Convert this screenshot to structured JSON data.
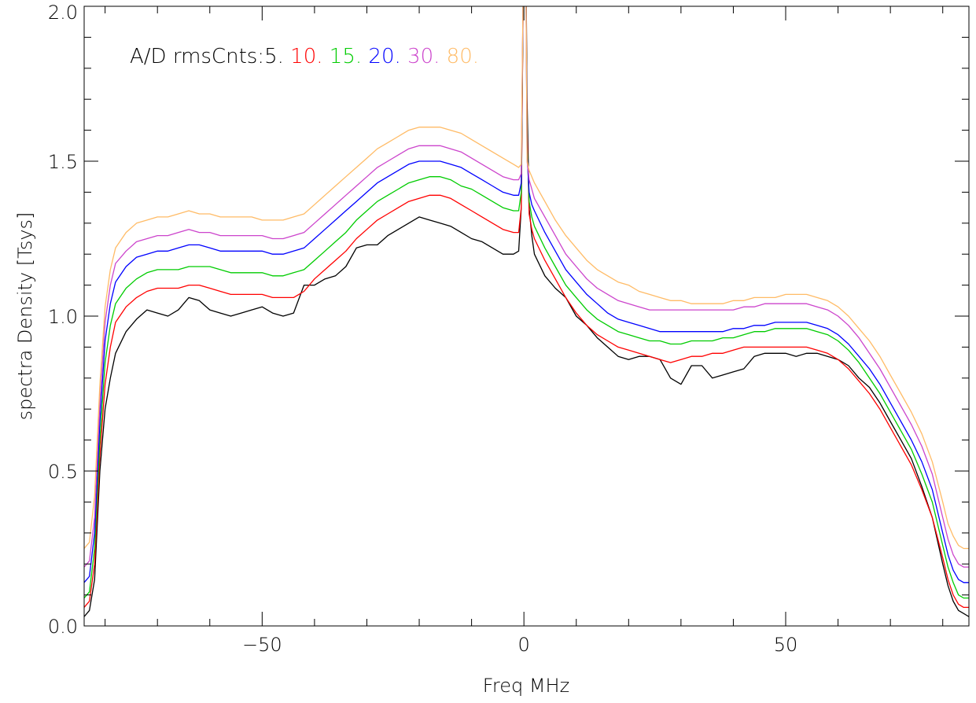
{
  "chart_data": {
    "type": "line",
    "xlabel": "Freq MHz",
    "ylabel": "spectra Density [Tsys]",
    "xlim": [
      -84,
      85
    ],
    "ylim": [
      0.0,
      2.0
    ],
    "x_ticks": [
      -50,
      0,
      50
    ],
    "x_tick_labels": [
      "−50",
      "0",
      "50"
    ],
    "y_ticks": [
      0.0,
      0.5,
      1.0,
      1.5,
      2.0
    ],
    "y_tick_labels": [
      "0.0",
      "0.5",
      "1.0",
      "1.5",
      "2.0"
    ],
    "legend": {
      "prefix": "A/D rmsCnts:",
      "placement": "top-left",
      "entries": [
        "5.",
        "10.",
        "15.",
        "20.",
        "30.",
        "80."
      ]
    },
    "grid": false,
    "series": [
      {
        "name": "5.",
        "color": "#000000",
        "x": [
          -84,
          -83,
          -82,
          -81,
          -80,
          -79,
          -78,
          -76,
          -74,
          -72,
          -70,
          -68,
          -66,
          -64,
          -62,
          -60,
          -58,
          -56,
          -54,
          -52,
          -50,
          -48,
          -46,
          -44,
          -42,
          -40,
          -38,
          -36,
          -34,
          -32,
          -30,
          -28,
          -26,
          -24,
          -22,
          -20,
          -18,
          -16,
          -14,
          -12,
          -10,
          -8,
          -6,
          -4,
          -2,
          -1,
          -0.5,
          0,
          0.3,
          0.6,
          1,
          1.5,
          2,
          4,
          6,
          8,
          10,
          12,
          14,
          16,
          18,
          20,
          22,
          24,
          26,
          28,
          30,
          32,
          34,
          36,
          38,
          40,
          42,
          44,
          46,
          48,
          50,
          52,
          54,
          56,
          58,
          60,
          62,
          64,
          66,
          68,
          70,
          72,
          74,
          76,
          78,
          80,
          81,
          82,
          83,
          84,
          85
        ],
        "y": [
          0.03,
          0.05,
          0.15,
          0.5,
          0.7,
          0.8,
          0.88,
          0.95,
          0.99,
          1.02,
          1.01,
          1.0,
          1.02,
          1.06,
          1.05,
          1.02,
          1.01,
          1.0,
          1.01,
          1.02,
          1.03,
          1.01,
          1.0,
          1.01,
          1.1,
          1.1,
          1.12,
          1.13,
          1.16,
          1.22,
          1.23,
          1.23,
          1.26,
          1.28,
          1.3,
          1.32,
          1.31,
          1.3,
          1.29,
          1.27,
          1.25,
          1.24,
          1.22,
          1.2,
          1.2,
          1.21,
          1.35,
          2.3,
          2.3,
          1.7,
          1.35,
          1.26,
          1.2,
          1.13,
          1.09,
          1.06,
          1.0,
          0.97,
          0.93,
          0.9,
          0.87,
          0.86,
          0.87,
          0.87,
          0.86,
          0.8,
          0.78,
          0.84,
          0.84,
          0.8,
          0.81,
          0.82,
          0.83,
          0.87,
          0.88,
          0.88,
          0.88,
          0.87,
          0.88,
          0.88,
          0.87,
          0.86,
          0.84,
          0.8,
          0.77,
          0.72,
          0.66,
          0.6,
          0.54,
          0.45,
          0.35,
          0.2,
          0.13,
          0.08,
          0.05,
          0.04,
          0.03
        ]
      },
      {
        "name": "10.",
        "color": "#ff0000",
        "x": [
          -84,
          -83,
          -82,
          -81,
          -80,
          -79,
          -78,
          -76,
          -74,
          -72,
          -70,
          -68,
          -66,
          -64,
          -62,
          -60,
          -58,
          -56,
          -54,
          -52,
          -50,
          -48,
          -46,
          -44,
          -42,
          -40,
          -38,
          -36,
          -34,
          -32,
          -30,
          -28,
          -26,
          -24,
          -22,
          -20,
          -18,
          -16,
          -14,
          -12,
          -10,
          -8,
          -6,
          -4,
          -2,
          -1,
          -0.5,
          0,
          0.3,
          0.6,
          1,
          1.5,
          2,
          4,
          6,
          8,
          10,
          12,
          14,
          16,
          18,
          20,
          22,
          24,
          26,
          28,
          30,
          32,
          34,
          36,
          38,
          40,
          42,
          44,
          46,
          48,
          50,
          52,
          54,
          56,
          58,
          60,
          62,
          64,
          66,
          68,
          70,
          72,
          74,
          76,
          78,
          80,
          81,
          82,
          83,
          84,
          85
        ],
        "y": [
          0.06,
          0.08,
          0.2,
          0.55,
          0.78,
          0.9,
          0.98,
          1.03,
          1.06,
          1.08,
          1.09,
          1.09,
          1.09,
          1.1,
          1.1,
          1.09,
          1.08,
          1.07,
          1.07,
          1.07,
          1.07,
          1.06,
          1.06,
          1.06,
          1.08,
          1.12,
          1.15,
          1.18,
          1.21,
          1.25,
          1.28,
          1.31,
          1.33,
          1.35,
          1.37,
          1.38,
          1.39,
          1.39,
          1.38,
          1.36,
          1.34,
          1.32,
          1.3,
          1.28,
          1.27,
          1.27,
          1.35,
          2.3,
          2.3,
          1.6,
          1.33,
          1.28,
          1.25,
          1.18,
          1.12,
          1.06,
          1.01,
          0.97,
          0.94,
          0.92,
          0.9,
          0.89,
          0.88,
          0.87,
          0.86,
          0.85,
          0.86,
          0.87,
          0.87,
          0.88,
          0.88,
          0.89,
          0.9,
          0.9,
          0.9,
          0.9,
          0.9,
          0.9,
          0.9,
          0.89,
          0.88,
          0.86,
          0.83,
          0.79,
          0.75,
          0.7,
          0.64,
          0.58,
          0.52,
          0.44,
          0.35,
          0.22,
          0.15,
          0.1,
          0.07,
          0.06,
          0.06
        ]
      },
      {
        "name": "15.",
        "color": "#00cc00",
        "x": [
          -84,
          -83,
          -82,
          -81,
          -80,
          -79,
          -78,
          -76,
          -74,
          -72,
          -70,
          -68,
          -66,
          -64,
          -62,
          -60,
          -58,
          -56,
          -54,
          -52,
          -50,
          -48,
          -46,
          -44,
          -42,
          -40,
          -38,
          -36,
          -34,
          -32,
          -30,
          -28,
          -26,
          -24,
          -22,
          -20,
          -18,
          -16,
          -14,
          -12,
          -10,
          -8,
          -6,
          -4,
          -2,
          -1,
          -0.5,
          0,
          0.3,
          0.6,
          1,
          1.5,
          2,
          4,
          6,
          8,
          10,
          12,
          14,
          16,
          18,
          20,
          22,
          24,
          26,
          28,
          30,
          32,
          34,
          36,
          38,
          40,
          42,
          44,
          46,
          48,
          50,
          52,
          54,
          56,
          58,
          60,
          62,
          64,
          66,
          68,
          70,
          72,
          74,
          76,
          78,
          80,
          81,
          82,
          83,
          84,
          85
        ],
        "y": [
          0.09,
          0.11,
          0.25,
          0.6,
          0.85,
          0.97,
          1.04,
          1.09,
          1.12,
          1.14,
          1.15,
          1.15,
          1.15,
          1.16,
          1.16,
          1.16,
          1.15,
          1.14,
          1.14,
          1.14,
          1.14,
          1.13,
          1.13,
          1.14,
          1.15,
          1.18,
          1.21,
          1.24,
          1.27,
          1.31,
          1.34,
          1.37,
          1.39,
          1.41,
          1.43,
          1.44,
          1.45,
          1.45,
          1.44,
          1.42,
          1.41,
          1.39,
          1.37,
          1.35,
          1.34,
          1.34,
          1.4,
          2.3,
          2.3,
          1.55,
          1.37,
          1.32,
          1.29,
          1.22,
          1.16,
          1.1,
          1.06,
          1.02,
          0.99,
          0.97,
          0.95,
          0.94,
          0.93,
          0.92,
          0.92,
          0.91,
          0.91,
          0.92,
          0.92,
          0.92,
          0.93,
          0.93,
          0.94,
          0.95,
          0.95,
          0.96,
          0.96,
          0.96,
          0.96,
          0.95,
          0.94,
          0.92,
          0.89,
          0.85,
          0.8,
          0.75,
          0.69,
          0.63,
          0.57,
          0.49,
          0.4,
          0.26,
          0.19,
          0.14,
          0.1,
          0.09,
          0.09
        ]
      },
      {
        "name": "20.",
        "color": "#0000ff",
        "x": [
          -84,
          -83,
          -82,
          -81,
          -80,
          -79,
          -78,
          -76,
          -74,
          -72,
          -70,
          -68,
          -66,
          -64,
          -62,
          -60,
          -58,
          -56,
          -54,
          -52,
          -50,
          -48,
          -46,
          -44,
          -42,
          -40,
          -38,
          -36,
          -34,
          -32,
          -30,
          -28,
          -26,
          -24,
          -22,
          -20,
          -18,
          -16,
          -14,
          -12,
          -10,
          -8,
          -6,
          -4,
          -2,
          -1,
          -0.5,
          0,
          0.3,
          0.6,
          1,
          1.5,
          2,
          4,
          6,
          8,
          10,
          12,
          14,
          16,
          18,
          20,
          22,
          24,
          26,
          28,
          30,
          32,
          34,
          36,
          38,
          40,
          42,
          44,
          46,
          48,
          50,
          52,
          54,
          56,
          58,
          60,
          62,
          64,
          66,
          68,
          70,
          72,
          74,
          76,
          78,
          80,
          81,
          82,
          83,
          84,
          85
        ],
        "y": [
          0.14,
          0.16,
          0.3,
          0.66,
          0.92,
          1.04,
          1.11,
          1.16,
          1.19,
          1.2,
          1.21,
          1.21,
          1.22,
          1.23,
          1.23,
          1.22,
          1.21,
          1.21,
          1.21,
          1.21,
          1.21,
          1.2,
          1.2,
          1.21,
          1.22,
          1.25,
          1.28,
          1.31,
          1.34,
          1.37,
          1.4,
          1.43,
          1.45,
          1.47,
          1.49,
          1.5,
          1.5,
          1.5,
          1.49,
          1.48,
          1.46,
          1.44,
          1.42,
          1.4,
          1.39,
          1.39,
          1.43,
          2.3,
          2.3,
          1.52,
          1.4,
          1.36,
          1.34,
          1.27,
          1.21,
          1.15,
          1.11,
          1.07,
          1.04,
          1.01,
          0.99,
          0.98,
          0.97,
          0.96,
          0.95,
          0.95,
          0.95,
          0.95,
          0.95,
          0.95,
          0.95,
          0.96,
          0.96,
          0.97,
          0.97,
          0.98,
          0.98,
          0.98,
          0.98,
          0.97,
          0.96,
          0.94,
          0.91,
          0.87,
          0.83,
          0.78,
          0.72,
          0.66,
          0.6,
          0.53,
          0.44,
          0.3,
          0.23,
          0.18,
          0.15,
          0.14,
          0.14
        ]
      },
      {
        "name": "30.",
        "color": "#cc44cc",
        "x": [
          -84,
          -83,
          -82,
          -81,
          -80,
          -79,
          -78,
          -76,
          -74,
          -72,
          -70,
          -68,
          -66,
          -64,
          -62,
          -60,
          -58,
          -56,
          -54,
          -52,
          -50,
          -48,
          -46,
          -44,
          -42,
          -40,
          -38,
          -36,
          -34,
          -32,
          -30,
          -28,
          -26,
          -24,
          -22,
          -20,
          -18,
          -16,
          -14,
          -12,
          -10,
          -8,
          -6,
          -4,
          -2,
          -1,
          -0.5,
          0,
          0.3,
          0.6,
          1,
          1.5,
          2,
          4,
          6,
          8,
          10,
          12,
          14,
          16,
          18,
          20,
          22,
          24,
          26,
          28,
          30,
          32,
          34,
          36,
          38,
          40,
          42,
          44,
          46,
          48,
          50,
          52,
          54,
          56,
          58,
          60,
          62,
          64,
          66,
          68,
          70,
          72,
          74,
          76,
          78,
          80,
          81,
          82,
          83,
          84,
          85
        ],
        "y": [
          0.19,
          0.21,
          0.35,
          0.72,
          0.98,
          1.1,
          1.17,
          1.21,
          1.24,
          1.25,
          1.26,
          1.26,
          1.27,
          1.28,
          1.27,
          1.27,
          1.26,
          1.26,
          1.26,
          1.26,
          1.26,
          1.25,
          1.25,
          1.26,
          1.27,
          1.3,
          1.33,
          1.36,
          1.39,
          1.42,
          1.45,
          1.48,
          1.5,
          1.52,
          1.54,
          1.55,
          1.55,
          1.55,
          1.54,
          1.53,
          1.51,
          1.49,
          1.47,
          1.45,
          1.44,
          1.44,
          1.46,
          2.3,
          2.3,
          1.5,
          1.44,
          1.41,
          1.38,
          1.32,
          1.26,
          1.2,
          1.16,
          1.12,
          1.09,
          1.07,
          1.05,
          1.04,
          1.03,
          1.02,
          1.02,
          1.02,
          1.02,
          1.02,
          1.02,
          1.02,
          1.02,
          1.02,
          1.03,
          1.03,
          1.04,
          1.04,
          1.04,
          1.04,
          1.04,
          1.03,
          1.02,
          1.0,
          0.97,
          0.93,
          0.88,
          0.83,
          0.77,
          0.71,
          0.65,
          0.58,
          0.49,
          0.35,
          0.28,
          0.23,
          0.2,
          0.19,
          0.19
        ]
      },
      {
        "name": "80.",
        "color": "#ffbb66",
        "x": [
          -84,
          -83,
          -82,
          -81,
          -80,
          -79,
          -78,
          -76,
          -74,
          -72,
          -70,
          -68,
          -66,
          -64,
          -62,
          -60,
          -58,
          -56,
          -54,
          -52,
          -50,
          -48,
          -46,
          -44,
          -42,
          -40,
          -38,
          -36,
          -34,
          -32,
          -30,
          -28,
          -26,
          -24,
          -22,
          -20,
          -18,
          -16,
          -14,
          -12,
          -10,
          -8,
          -6,
          -4,
          -2,
          -1,
          -0.5,
          0,
          0.3,
          0.6,
          1,
          1.5,
          2,
          4,
          6,
          8,
          10,
          12,
          14,
          16,
          18,
          20,
          22,
          24,
          26,
          28,
          30,
          32,
          34,
          36,
          38,
          40,
          42,
          44,
          46,
          48,
          50,
          52,
          54,
          56,
          58,
          60,
          62,
          64,
          66,
          68,
          70,
          72,
          74,
          76,
          78,
          80,
          81,
          82,
          83,
          84,
          85
        ],
        "y": [
          0.25,
          0.27,
          0.42,
          0.78,
          1.03,
          1.15,
          1.22,
          1.27,
          1.3,
          1.31,
          1.32,
          1.32,
          1.33,
          1.34,
          1.33,
          1.33,
          1.32,
          1.32,
          1.32,
          1.32,
          1.31,
          1.31,
          1.31,
          1.32,
          1.33,
          1.36,
          1.39,
          1.42,
          1.45,
          1.48,
          1.51,
          1.54,
          1.56,
          1.58,
          1.6,
          1.61,
          1.61,
          1.61,
          1.6,
          1.59,
          1.57,
          1.55,
          1.53,
          1.51,
          1.49,
          1.48,
          1.49,
          2.3,
          2.3,
          1.5,
          1.47,
          1.45,
          1.43,
          1.37,
          1.31,
          1.26,
          1.22,
          1.18,
          1.15,
          1.13,
          1.11,
          1.1,
          1.08,
          1.07,
          1.06,
          1.05,
          1.05,
          1.04,
          1.04,
          1.04,
          1.04,
          1.05,
          1.05,
          1.06,
          1.06,
          1.06,
          1.07,
          1.07,
          1.07,
          1.06,
          1.05,
          1.03,
          1.0,
          0.96,
          0.92,
          0.87,
          0.81,
          0.75,
          0.69,
          0.62,
          0.53,
          0.4,
          0.33,
          0.29,
          0.26,
          0.25,
          0.25
        ]
      }
    ]
  }
}
